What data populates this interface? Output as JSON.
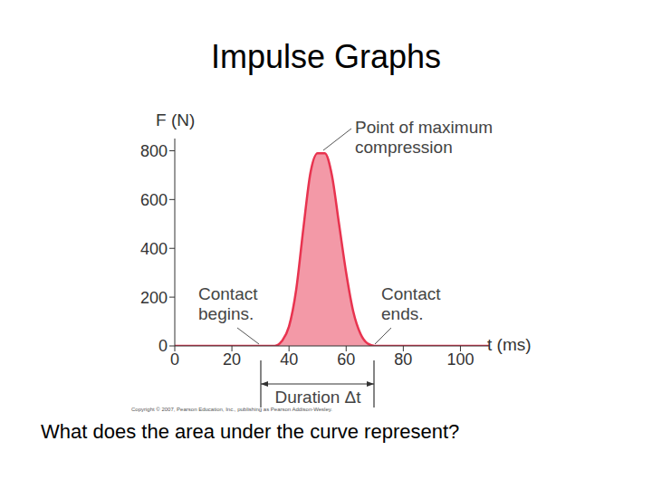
{
  "title": "Impulse Graphs",
  "question": "What does the area under the curve represent?",
  "chart_data": {
    "type": "area",
    "x_label": "t (ms)",
    "y_label": "F (N)",
    "x": [
      0,
      10,
      20,
      30,
      35,
      37.5,
      40,
      42.5,
      45,
      47.5,
      50,
      52.5,
      55,
      57.5,
      60,
      62.5,
      65,
      67.5,
      70,
      80,
      90,
      100,
      110
    ],
    "values": [
      0,
      0,
      0,
      0,
      0,
      20,
      80,
      230,
      480,
      710,
      790,
      790,
      700,
      500,
      300,
      140,
      50,
      10,
      0,
      0,
      0,
      0,
      0
    ],
    "color": "#e8334f",
    "xlim": [
      0,
      110
    ],
    "ylim": [
      0,
      850
    ],
    "xticks": [
      0,
      20,
      40,
      60,
      80,
      100
    ],
    "yticks": [
      0,
      200,
      400,
      600,
      800
    ],
    "annotations": [
      "Point of maximum compression",
      "Contact begins.",
      "Contact ends.",
      "Duration Δt"
    ],
    "copyright": "Copyright © 2007, Pearson Education, Inc., publishing as Pearson Addison-Wesley."
  }
}
